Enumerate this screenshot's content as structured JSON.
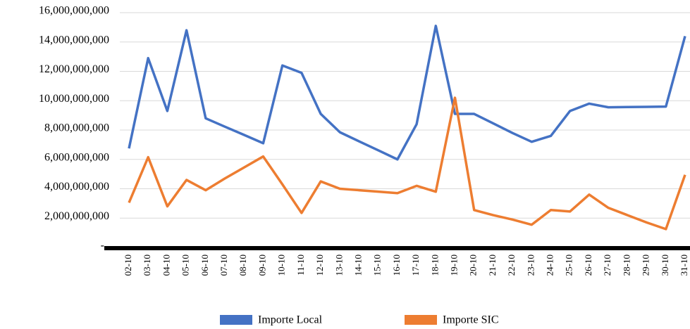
{
  "chart_data": {
    "type": "line",
    "categories": [
      "02-10",
      "03-10",
      "04-10",
      "05-10",
      "06-10",
      "07-10",
      "08-10",
      "09-10",
      "10-10",
      "11-10",
      "12-10",
      "13-10",
      "14-10",
      "15-10",
      "16-10",
      "17-10",
      "18-10",
      "19-10",
      "20-10",
      "21-10",
      "22-10",
      "23-10",
      "24-10",
      "25-10",
      "26-10",
      "27-10",
      "28-10",
      "29-10",
      "30-10",
      "31-10"
    ],
    "series": [
      {
        "name": "Importe Local",
        "color": "#4472c4",
        "values": [
          6750000000,
          12900000000,
          9300000000,
          14800000000,
          8800000000,
          8230000000,
          7670000000,
          7100000000,
          12400000000,
          11900000000,
          9100000000,
          7850000000,
          7230000000,
          6620000000,
          6000000000,
          8400000000,
          15100000000,
          9100000000,
          9100000000,
          8450000000,
          7800000000,
          7200000000,
          7600000000,
          9300000000,
          9800000000,
          9550000000,
          9570000000,
          9580000000,
          9600000000,
          14400000000
        ]
      },
      {
        "name": "Importe SIC",
        "color": "#ed7d31",
        "values": [
          3050000000,
          6150000000,
          2800000000,
          4600000000,
          3900000000,
          4700000000,
          5450000000,
          6200000000,
          4300000000,
          2350000000,
          4500000000,
          4000000000,
          3900000000,
          3800000000,
          3700000000,
          4200000000,
          3800000000,
          10200000000,
          2550000000,
          2200000000,
          1900000000,
          1550000000,
          2550000000,
          2450000000,
          3600000000,
          2700000000,
          2200000000,
          1700000000,
          1250000000,
          4950000000
        ]
      }
    ],
    "ylim": [
      0,
      16000000000
    ],
    "yticks": [
      {
        "value": 0,
        "label": "-"
      },
      {
        "value": 2000000000,
        "label": "2,000,000,000"
      },
      {
        "value": 4000000000,
        "label": "4,000,000,000"
      },
      {
        "value": 6000000000,
        "label": "6,000,000,000"
      },
      {
        "value": 8000000000,
        "label": "8,000,000,000"
      },
      {
        "value": 10000000000,
        "label": "10,000,000,000"
      },
      {
        "value": 12000000000,
        "label": "12,000,000,000"
      },
      {
        "value": 14000000000,
        "label": "14,000,000,000"
      },
      {
        "value": 16000000000,
        "label": "16,000,000,000"
      }
    ],
    "grid": true,
    "legend": "bottom"
  }
}
